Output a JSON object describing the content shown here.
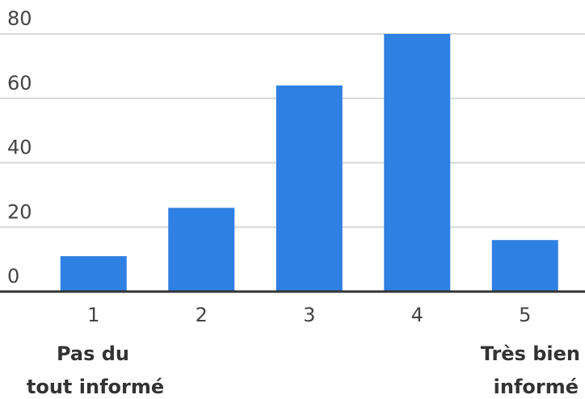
{
  "chart_data": {
    "type": "bar",
    "categories": [
      "1",
      "2",
      "3",
      "4",
      "5"
    ],
    "values": [
      11,
      26,
      64,
      80,
      16
    ],
    "ylim": [
      0,
      80
    ],
    "yticks": [
      "0",
      "20",
      "40",
      "60",
      "80"
    ],
    "grid": true,
    "bar_color": "#2f80e3",
    "scale_labels": {
      "low": [
        "Pas du",
        "tout informé"
      ],
      "high": [
        "Très bien",
        "informé"
      ]
    }
  }
}
